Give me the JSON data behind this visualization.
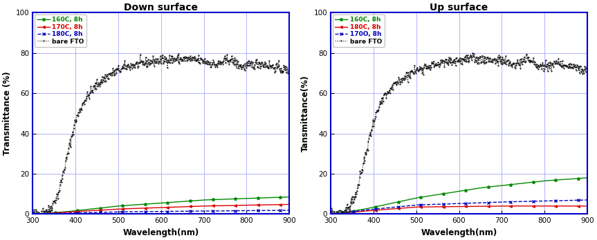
{
  "title_left": "Down surface",
  "title_right": "Up surface",
  "xlabel": "Wavelength(nm)",
  "ylabel_left": "Transmittance (%)",
  "ylabel_right": "Tansmittance(%)",
  "xlim": [
    300,
    900
  ],
  "ylim": [
    0,
    100
  ],
  "yticks": [
    0,
    20,
    40,
    60,
    80,
    100
  ],
  "xticks": [
    300,
    400,
    500,
    600,
    700,
    800,
    900
  ],
  "legend_left": [
    "160C, 8h",
    "170C, 8h",
    "180C, 8h",
    "bare FTO"
  ],
  "legend_right": [
    "160C, 8h",
    "180C, 8h",
    "170O, 8h",
    "bare FTO"
  ],
  "colors_left": [
    "#008800",
    "#dd0000",
    "#0000bb",
    "#000000"
  ],
  "colors_right": [
    "#008800",
    "#dd0000",
    "#0000bb",
    "#000000"
  ],
  "grid_color": "#aaaaff",
  "bg_color": "#ffffff",
  "spine_color": "#0000cc"
}
